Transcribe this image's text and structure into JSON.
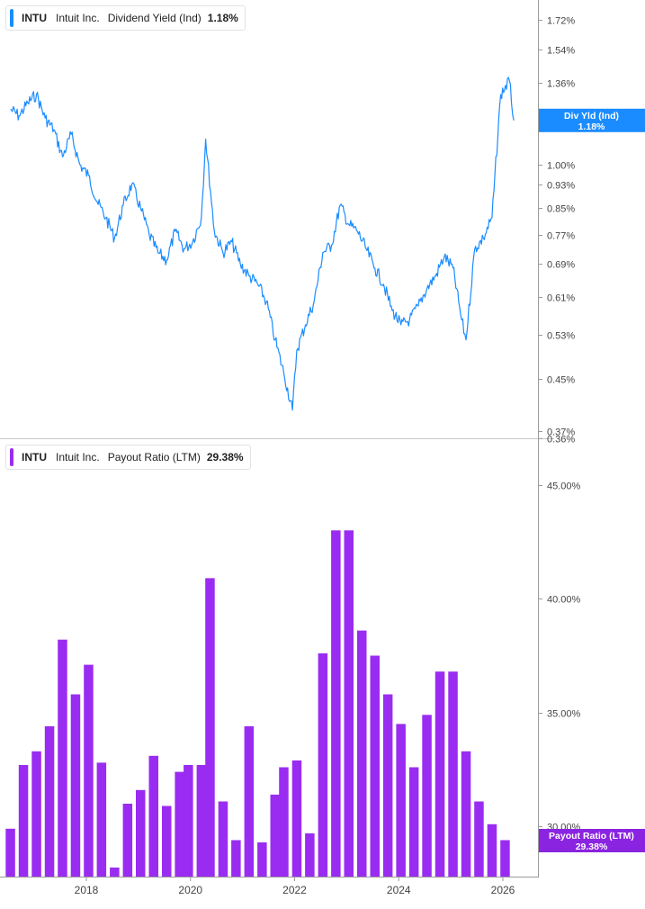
{
  "panels": {
    "top": {
      "ticker": "INTU",
      "company": "Intuit Inc.",
      "metric": "Dividend Yield (Ind)",
      "value": "1.18%",
      "badge_line1": "Div Yld (Ind)",
      "badge_line2": "1.18%"
    },
    "bottom": {
      "ticker": "INTU",
      "company": "Intuit Inc.",
      "metric": "Payout Ratio (LTM)",
      "value": "29.38%",
      "badge_line1": "Payout Ratio (LTM)",
      "badge_line2": "29.38%"
    }
  },
  "colors": {
    "yield_line": "#1a8cff",
    "payout_bar": "#9a2cf2",
    "yield_badge": "#1a8cff",
    "payout_badge": "#8a24e0",
    "axis": "#9a9a9a",
    "tick_text": "#444444"
  },
  "chart_data": [
    {
      "type": "line",
      "title": "Dividend Yield (Ind)",
      "series_name": "Div Yld (Ind)",
      "scale": "log",
      "ylim": [
        0.36,
        1.85
      ],
      "y_ticks": [
        1.72,
        1.54,
        1.36,
        1.0,
        0.93,
        0.85,
        0.77,
        0.69,
        0.61,
        0.53,
        0.45,
        0.37,
        0.36
      ],
      "y_tick_labels": [
        "1.72%",
        "1.54%",
        "1.36%",
        "1.00%",
        "0.93%",
        "0.85%",
        "0.77%",
        "0.69%",
        "0.61%",
        "0.53%",
        "0.45%",
        "0.37%",
        "0.36%"
      ],
      "x_ticks": [
        2018,
        2020,
        2022,
        2024,
        2026
      ],
      "current_value": 1.18,
      "points": [
        [
          "2016-07",
          1.23
        ],
        [
          "2016-09",
          1.2
        ],
        [
          "2016-11",
          1.26
        ],
        [
          "2017-01",
          1.3
        ],
        [
          "2017-03",
          1.19
        ],
        [
          "2017-05",
          1.14
        ],
        [
          "2017-07",
          1.03
        ],
        [
          "2017-09",
          1.12
        ],
        [
          "2017-11",
          1.0
        ],
        [
          "2018-01",
          0.96
        ],
        [
          "2018-03",
          0.87
        ],
        [
          "2018-05",
          0.82
        ],
        [
          "2018-07",
          0.76
        ],
        [
          "2018-09",
          0.86
        ],
        [
          "2018-11",
          0.93
        ],
        [
          "2019-01",
          0.85
        ],
        [
          "2019-03",
          0.77
        ],
        [
          "2019-05",
          0.72
        ],
        [
          "2019-07",
          0.7
        ],
        [
          "2019-09",
          0.78
        ],
        [
          "2019-11",
          0.73
        ],
        [
          "2020-01",
          0.75
        ],
        [
          "2020-03",
          0.82
        ],
        [
          "2020-04",
          1.1
        ],
        [
          "2020-06",
          0.78
        ],
        [
          "2020-08",
          0.72
        ],
        [
          "2020-10",
          0.75
        ],
        [
          "2020-12",
          0.69
        ],
        [
          "2021-02",
          0.66
        ],
        [
          "2021-04",
          0.64
        ],
        [
          "2021-06",
          0.6
        ],
        [
          "2021-08",
          0.52
        ],
        [
          "2021-10",
          0.46
        ],
        [
          "2021-12",
          0.4
        ],
        [
          "2022-01",
          0.5
        ],
        [
          "2022-03",
          0.55
        ],
        [
          "2022-05",
          0.6
        ],
        [
          "2022-07",
          0.72
        ],
        [
          "2022-09",
          0.74
        ],
        [
          "2022-11",
          0.86
        ],
        [
          "2023-01",
          0.8
        ],
        [
          "2023-03",
          0.78
        ],
        [
          "2023-05",
          0.73
        ],
        [
          "2023-07",
          0.68
        ],
        [
          "2023-09",
          0.64
        ],
        [
          "2023-11",
          0.58
        ],
        [
          "2024-01",
          0.55
        ],
        [
          "2024-03",
          0.56
        ],
        [
          "2024-05",
          0.59
        ],
        [
          "2024-07",
          0.63
        ],
        [
          "2024-09",
          0.66
        ],
        [
          "2024-11",
          0.71
        ],
        [
          "2025-01",
          0.68
        ],
        [
          "2025-03",
          0.56
        ],
        [
          "2025-04",
          0.52
        ],
        [
          "2025-06",
          0.73
        ],
        [
          "2025-08",
          0.76
        ],
        [
          "2025-10",
          0.82
        ],
        [
          "2025-12",
          1.3
        ],
        [
          "2026-02",
          1.37
        ],
        [
          "2026-03",
          1.18
        ]
      ]
    },
    {
      "type": "bar",
      "title": "Payout Ratio (LTM)",
      "series_name": "Payout Ratio (LTM)",
      "ylim": [
        27.8,
        47.0
      ],
      "y_ticks": [
        45.0,
        40.0,
        35.0,
        30.0
      ],
      "y_tick_labels": [
        "45.00%",
        "40.00%",
        "35.00%",
        "30.00%"
      ],
      "x_ticks": [
        2018,
        2020,
        2022,
        2024,
        2026
      ],
      "current_value": 29.38,
      "points": [
        [
          "2016-07",
          29.9
        ],
        [
          "2016-10",
          32.7
        ],
        [
          "2017-01",
          33.3
        ],
        [
          "2017-04",
          34.4
        ],
        [
          "2017-07",
          38.2
        ],
        [
          "2017-10",
          35.8
        ],
        [
          "2018-01",
          37.1
        ],
        [
          "2018-04",
          32.8
        ],
        [
          "2018-07",
          28.2
        ],
        [
          "2018-10",
          31.0
        ],
        [
          "2019-01",
          31.6
        ],
        [
          "2019-04",
          33.1
        ],
        [
          "2019-07",
          30.9
        ],
        [
          "2019-10",
          32.4
        ],
        [
          "2019-12",
          32.7
        ],
        [
          "2020-03",
          32.7
        ],
        [
          "2020-05",
          40.9
        ],
        [
          "2020-08",
          31.1
        ],
        [
          "2020-11",
          29.4
        ],
        [
          "2021-02",
          34.4
        ],
        [
          "2021-05",
          29.3
        ],
        [
          "2021-08",
          31.4
        ],
        [
          "2021-10",
          32.6
        ],
        [
          "2022-01",
          32.9
        ],
        [
          "2022-04",
          29.7
        ],
        [
          "2022-07",
          37.6
        ],
        [
          "2022-10",
          43.0
        ],
        [
          "2023-01",
          43.0
        ],
        [
          "2023-04",
          38.6
        ],
        [
          "2023-07",
          37.5
        ],
        [
          "2023-10",
          35.8
        ],
        [
          "2024-01",
          34.5
        ],
        [
          "2024-04",
          32.6
        ],
        [
          "2024-07",
          34.9
        ],
        [
          "2024-10",
          36.8
        ],
        [
          "2025-01",
          36.8
        ],
        [
          "2025-04",
          33.3
        ],
        [
          "2025-07",
          31.1
        ],
        [
          "2025-10",
          30.1
        ],
        [
          "2026-01",
          29.4
        ]
      ]
    }
  ]
}
